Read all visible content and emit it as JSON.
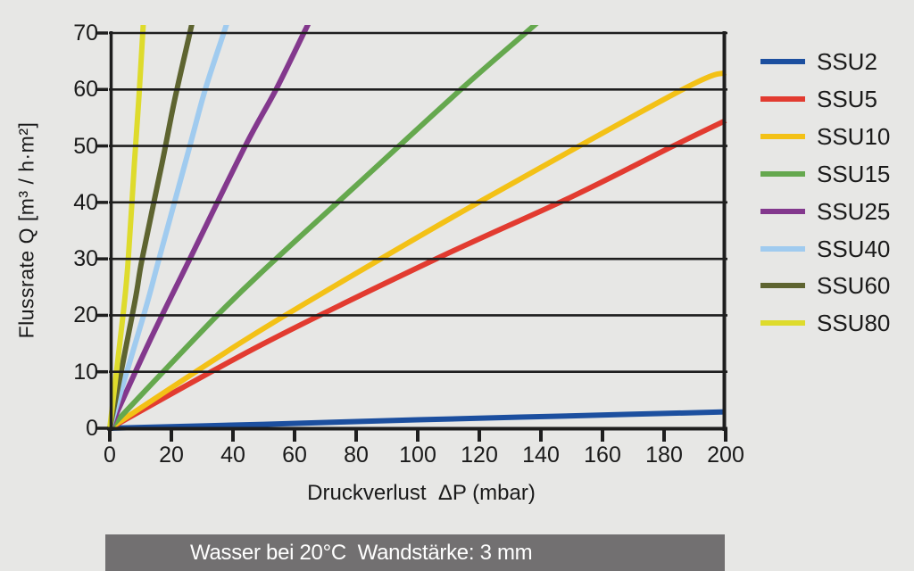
{
  "background": "#e7e7e5",
  "caption": {
    "text": "Wasser bei 20°C  Wandstärke: 3 mm",
    "bg": "#727071",
    "color": "#ffffff"
  },
  "chart_data": {
    "type": "line",
    "title": "",
    "xlabel": "Druckverlust  ΔP (mbar)",
    "ylabel": "Flussrate Q [m³ / h·m²]",
    "xlim": [
      0,
      200
    ],
    "ylim": [
      0,
      70
    ],
    "x_ticks": [
      0,
      20,
      40,
      60,
      80,
      100,
      120,
      140,
      160,
      180,
      200
    ],
    "y_ticks": [
      0,
      10,
      20,
      30,
      40,
      50,
      60,
      70
    ],
    "grid": "horizontal-only",
    "grid_color": "#1e1e1e",
    "axis_color": "#1e1e1e",
    "text_color": "#1a1a1a",
    "legend_position": "right",
    "series": [
      {
        "name": "SSU2",
        "color": "#1c4f9f",
        "points": [
          [
            0,
            0
          ],
          [
            50,
            0.7
          ],
          [
            100,
            1.5
          ],
          [
            150,
            2.2
          ],
          [
            200,
            2.9
          ]
        ]
      },
      {
        "name": "SSU5",
        "color": "#e23b30",
        "points": [
          [
            0,
            0
          ],
          [
            50,
            15
          ],
          [
            106,
            30
          ],
          [
            150,
            41
          ],
          [
            183,
            50
          ],
          [
            200,
            54.5
          ]
        ]
      },
      {
        "name": "SSU10",
        "color": "#f3c116",
        "points": [
          [
            0,
            0
          ],
          [
            45,
            16
          ],
          [
            88,
            30
          ],
          [
            123,
            41
          ],
          [
            186,
            60
          ],
          [
            200,
            63
          ]
        ]
      },
      {
        "name": "SSU15",
        "color": "#65a84e",
        "points": [
          [
            0,
            0
          ],
          [
            34,
            19.5
          ],
          [
            52,
            29
          ],
          [
            80,
            43
          ],
          [
            114,
            60
          ],
          [
            135,
            70
          ]
        ]
      },
      {
        "name": "SSU25",
        "color": "#83388d",
        "points": [
          [
            0,
            0
          ],
          [
            13,
            15.5
          ],
          [
            26,
            30
          ],
          [
            44,
            50
          ],
          [
            54,
            60
          ],
          [
            63,
            70
          ]
        ]
      },
      {
        "name": "SSU40",
        "color": "#a0cbef",
        "points": [
          [
            0,
            0
          ],
          [
            11,
            20
          ],
          [
            16,
            30
          ],
          [
            26,
            50
          ],
          [
            31,
            60
          ],
          [
            37,
            70
          ]
        ]
      },
      {
        "name": "SSU60",
        "color": "#5e6430",
        "points": [
          [
            0,
            0
          ],
          [
            8,
            22
          ],
          [
            10.5,
            30
          ],
          [
            17,
            47
          ],
          [
            21,
            58
          ],
          [
            26,
            70
          ]
        ]
      },
      {
        "name": "SSU80",
        "color": "#dedb2c",
        "points": [
          [
            0,
            0
          ],
          [
            4.5,
            21
          ],
          [
            6,
            30
          ],
          [
            8,
            47
          ],
          [
            9.5,
            59
          ],
          [
            10.7,
            70
          ]
        ]
      }
    ]
  }
}
